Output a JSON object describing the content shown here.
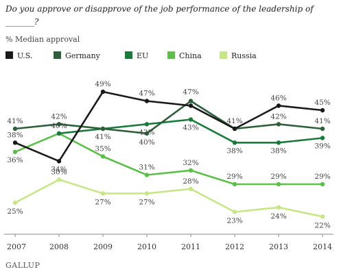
{
  "title": "Do you approve or disapprove of the job performance of the leadership of _______?",
  "brand": "GALLUP",
  "chart_data": {
    "type": "line",
    "title": "Do you approve or disapprove of the job performance of the leadership of _______?",
    "subtitle": "% Median approval",
    "x": [
      "2007",
      "2008",
      "2009",
      "2010",
      "2011",
      "2012",
      "2013",
      "2014"
    ],
    "legend_position": "top-left",
    "grid": false,
    "series": [
      {
        "name": "U.S.",
        "color": "#1a1a1a",
        "values": [
          38,
          34,
          49,
          47,
          46,
          41,
          46,
          45
        ],
        "labels": [
          "38%",
          "34%",
          "49%",
          "47%",
          "",
          "41%",
          "46%",
          "45%"
        ]
      },
      {
        "name": "Germany",
        "color": "#2e5e3a",
        "values": [
          41,
          42,
          41,
          40,
          47,
          41,
          42,
          41
        ],
        "labels": [
          "41%",
          "42%",
          "",
          "40%",
          "47%",
          "",
          "42%",
          "41%"
        ]
      },
      {
        "name": "EU",
        "color": "#1a7a3c",
        "values": [
          null,
          40,
          41,
          42,
          43,
          38,
          38,
          39
        ],
        "labels": [
          "",
          "",
          "41%",
          "42%",
          "43%",
          "38%",
          "38%",
          "39%"
        ]
      },
      {
        "name": "China",
        "color": "#5cbf4a",
        "values": [
          36,
          40,
          35,
          31,
          32,
          29,
          29,
          29
        ],
        "labels": [
          "36%",
          "40%",
          "35%",
          "31%",
          "32%",
          "29%",
          "29%",
          "29%"
        ]
      },
      {
        "name": "Russia",
        "color": "#c8e686",
        "values": [
          25,
          30,
          27,
          27,
          28,
          23,
          24,
          22
        ],
        "labels": [
          "25%",
          "30%",
          "27%",
          "27%",
          "28%",
          "23%",
          "24%",
          "22%"
        ]
      }
    ]
  }
}
